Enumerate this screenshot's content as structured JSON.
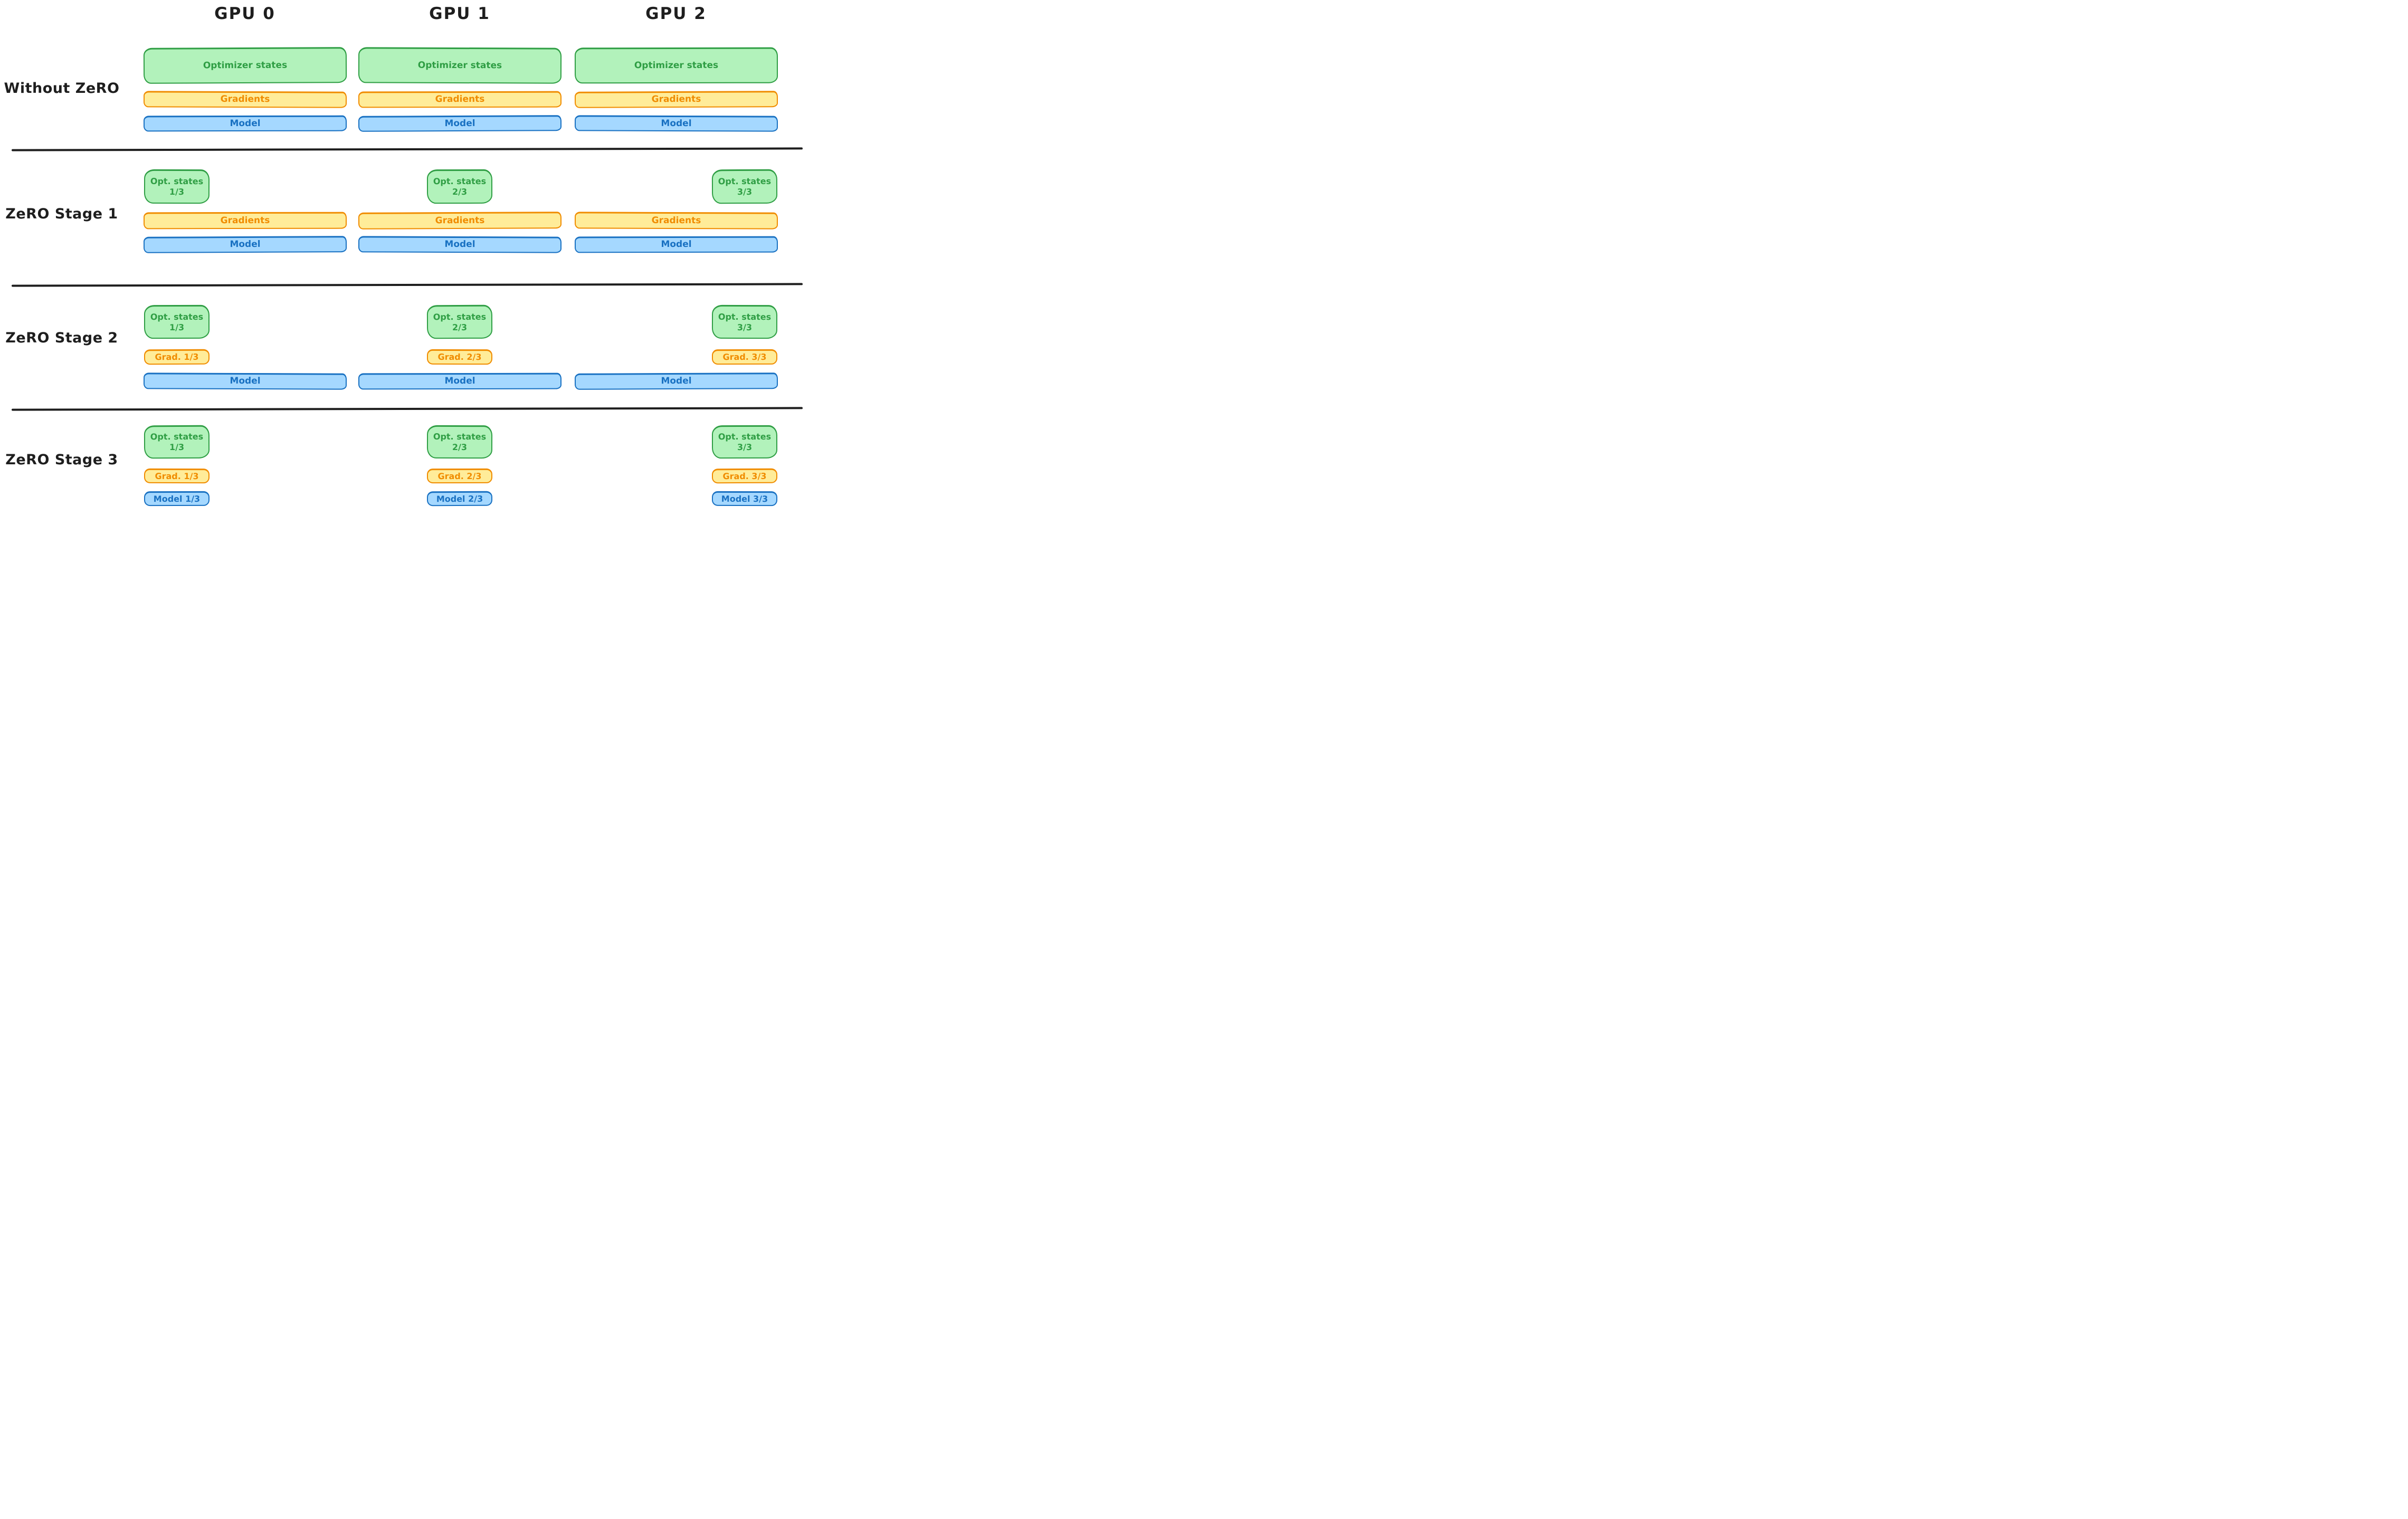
{
  "palette": {
    "ink": "#1e1e1e",
    "optimizer_fill": "#b2f2bb",
    "optimizer_stroke": "#2f9e44",
    "gradients_fill": "#ffec99",
    "gradients_stroke": "#f08c00",
    "model_fill": "#a5d8ff",
    "model_stroke": "#1971c2"
  },
  "header": {
    "columns": [
      "GPU 0",
      "GPU 1",
      "GPU 2"
    ]
  },
  "rows": [
    {
      "label": "Without ZeRO",
      "cells": [
        {
          "boxes": [
            {
              "kind": "optimizer",
              "layout": "full",
              "lines": [
                "Optimizer states"
              ]
            },
            {
              "kind": "gradients",
              "layout": "full",
              "lines": [
                "Gradients"
              ]
            },
            {
              "kind": "model",
              "layout": "full",
              "lines": [
                "Model"
              ]
            }
          ]
        },
        {
          "boxes": [
            {
              "kind": "optimizer",
              "layout": "full",
              "lines": [
                "Optimizer states"
              ]
            },
            {
              "kind": "gradients",
              "layout": "full",
              "lines": [
                "Gradients"
              ]
            },
            {
              "kind": "model",
              "layout": "full",
              "lines": [
                "Model"
              ]
            }
          ]
        },
        {
          "boxes": [
            {
              "kind": "optimizer",
              "layout": "full",
              "lines": [
                "Optimizer states"
              ]
            },
            {
              "kind": "gradients",
              "layout": "full",
              "lines": [
                "Gradients"
              ]
            },
            {
              "kind": "model",
              "layout": "full",
              "lines": [
                "Model"
              ]
            }
          ]
        }
      ]
    },
    {
      "label": "ZeRO Stage 1",
      "cells": [
        {
          "boxes": [
            {
              "kind": "optimizer",
              "layout": "shard",
              "shard": 0,
              "lines": [
                "Opt. states",
                "1/3"
              ]
            },
            {
              "kind": "gradients",
              "layout": "full",
              "lines": [
                "Gradients"
              ]
            },
            {
              "kind": "model",
              "layout": "full",
              "lines": [
                "Model"
              ]
            }
          ]
        },
        {
          "boxes": [
            {
              "kind": "optimizer",
              "layout": "shard",
              "shard": 1,
              "lines": [
                "Opt. states",
                "2/3"
              ]
            },
            {
              "kind": "gradients",
              "layout": "full",
              "lines": [
                "Gradients"
              ]
            },
            {
              "kind": "model",
              "layout": "full",
              "lines": [
                "Model"
              ]
            }
          ]
        },
        {
          "boxes": [
            {
              "kind": "optimizer",
              "layout": "shard",
              "shard": 2,
              "lines": [
                "Opt. states",
                "3/3"
              ]
            },
            {
              "kind": "gradients",
              "layout": "full",
              "lines": [
                "Gradients"
              ]
            },
            {
              "kind": "model",
              "layout": "full",
              "lines": [
                "Model"
              ]
            }
          ]
        }
      ]
    },
    {
      "label": "ZeRO Stage 2",
      "cells": [
        {
          "boxes": [
            {
              "kind": "optimizer",
              "layout": "shard",
              "shard": 0,
              "lines": [
                "Opt. states",
                "1/3"
              ]
            },
            {
              "kind": "gradients",
              "layout": "shard",
              "shard": 0,
              "lines": [
                "Grad. 1/3"
              ]
            },
            {
              "kind": "model",
              "layout": "full",
              "lines": [
                "Model"
              ]
            }
          ]
        },
        {
          "boxes": [
            {
              "kind": "optimizer",
              "layout": "shard",
              "shard": 1,
              "lines": [
                "Opt. states",
                "2/3"
              ]
            },
            {
              "kind": "gradients",
              "layout": "shard",
              "shard": 1,
              "lines": [
                "Grad. 2/3"
              ]
            },
            {
              "kind": "model",
              "layout": "full",
              "lines": [
                "Model"
              ]
            }
          ]
        },
        {
          "boxes": [
            {
              "kind": "optimizer",
              "layout": "shard",
              "shard": 2,
              "lines": [
                "Opt. states",
                "3/3"
              ]
            },
            {
              "kind": "gradients",
              "layout": "shard",
              "shard": 2,
              "lines": [
                "Grad. 3/3"
              ]
            },
            {
              "kind": "model",
              "layout": "full",
              "lines": [
                "Model"
              ]
            }
          ]
        }
      ]
    },
    {
      "label": "ZeRO Stage 3",
      "cells": [
        {
          "boxes": [
            {
              "kind": "optimizer",
              "layout": "shard",
              "shard": 0,
              "lines": [
                "Opt. states",
                "1/3"
              ]
            },
            {
              "kind": "gradients",
              "layout": "shard",
              "shard": 0,
              "lines": [
                "Grad. 1/3"
              ]
            },
            {
              "kind": "model",
              "layout": "shard",
              "shard": 0,
              "lines": [
                "Model 1/3"
              ]
            }
          ]
        },
        {
          "boxes": [
            {
              "kind": "optimizer",
              "layout": "shard",
              "shard": 1,
              "lines": [
                "Opt. states",
                "2/3"
              ]
            },
            {
              "kind": "gradients",
              "layout": "shard",
              "shard": 1,
              "lines": [
                "Grad. 2/3"
              ]
            },
            {
              "kind": "model",
              "layout": "shard",
              "shard": 1,
              "lines": [
                "Model 2/3"
              ]
            }
          ]
        },
        {
          "boxes": [
            {
              "kind": "optimizer",
              "layout": "shard",
              "shard": 2,
              "lines": [
                "Opt. states",
                "3/3"
              ]
            },
            {
              "kind": "gradients",
              "layout": "shard",
              "shard": 2,
              "lines": [
                "Grad. 3/3"
              ]
            },
            {
              "kind": "model",
              "layout": "shard",
              "shard": 2,
              "lines": [
                "Model 3/3"
              ]
            }
          ]
        }
      ]
    }
  ]
}
